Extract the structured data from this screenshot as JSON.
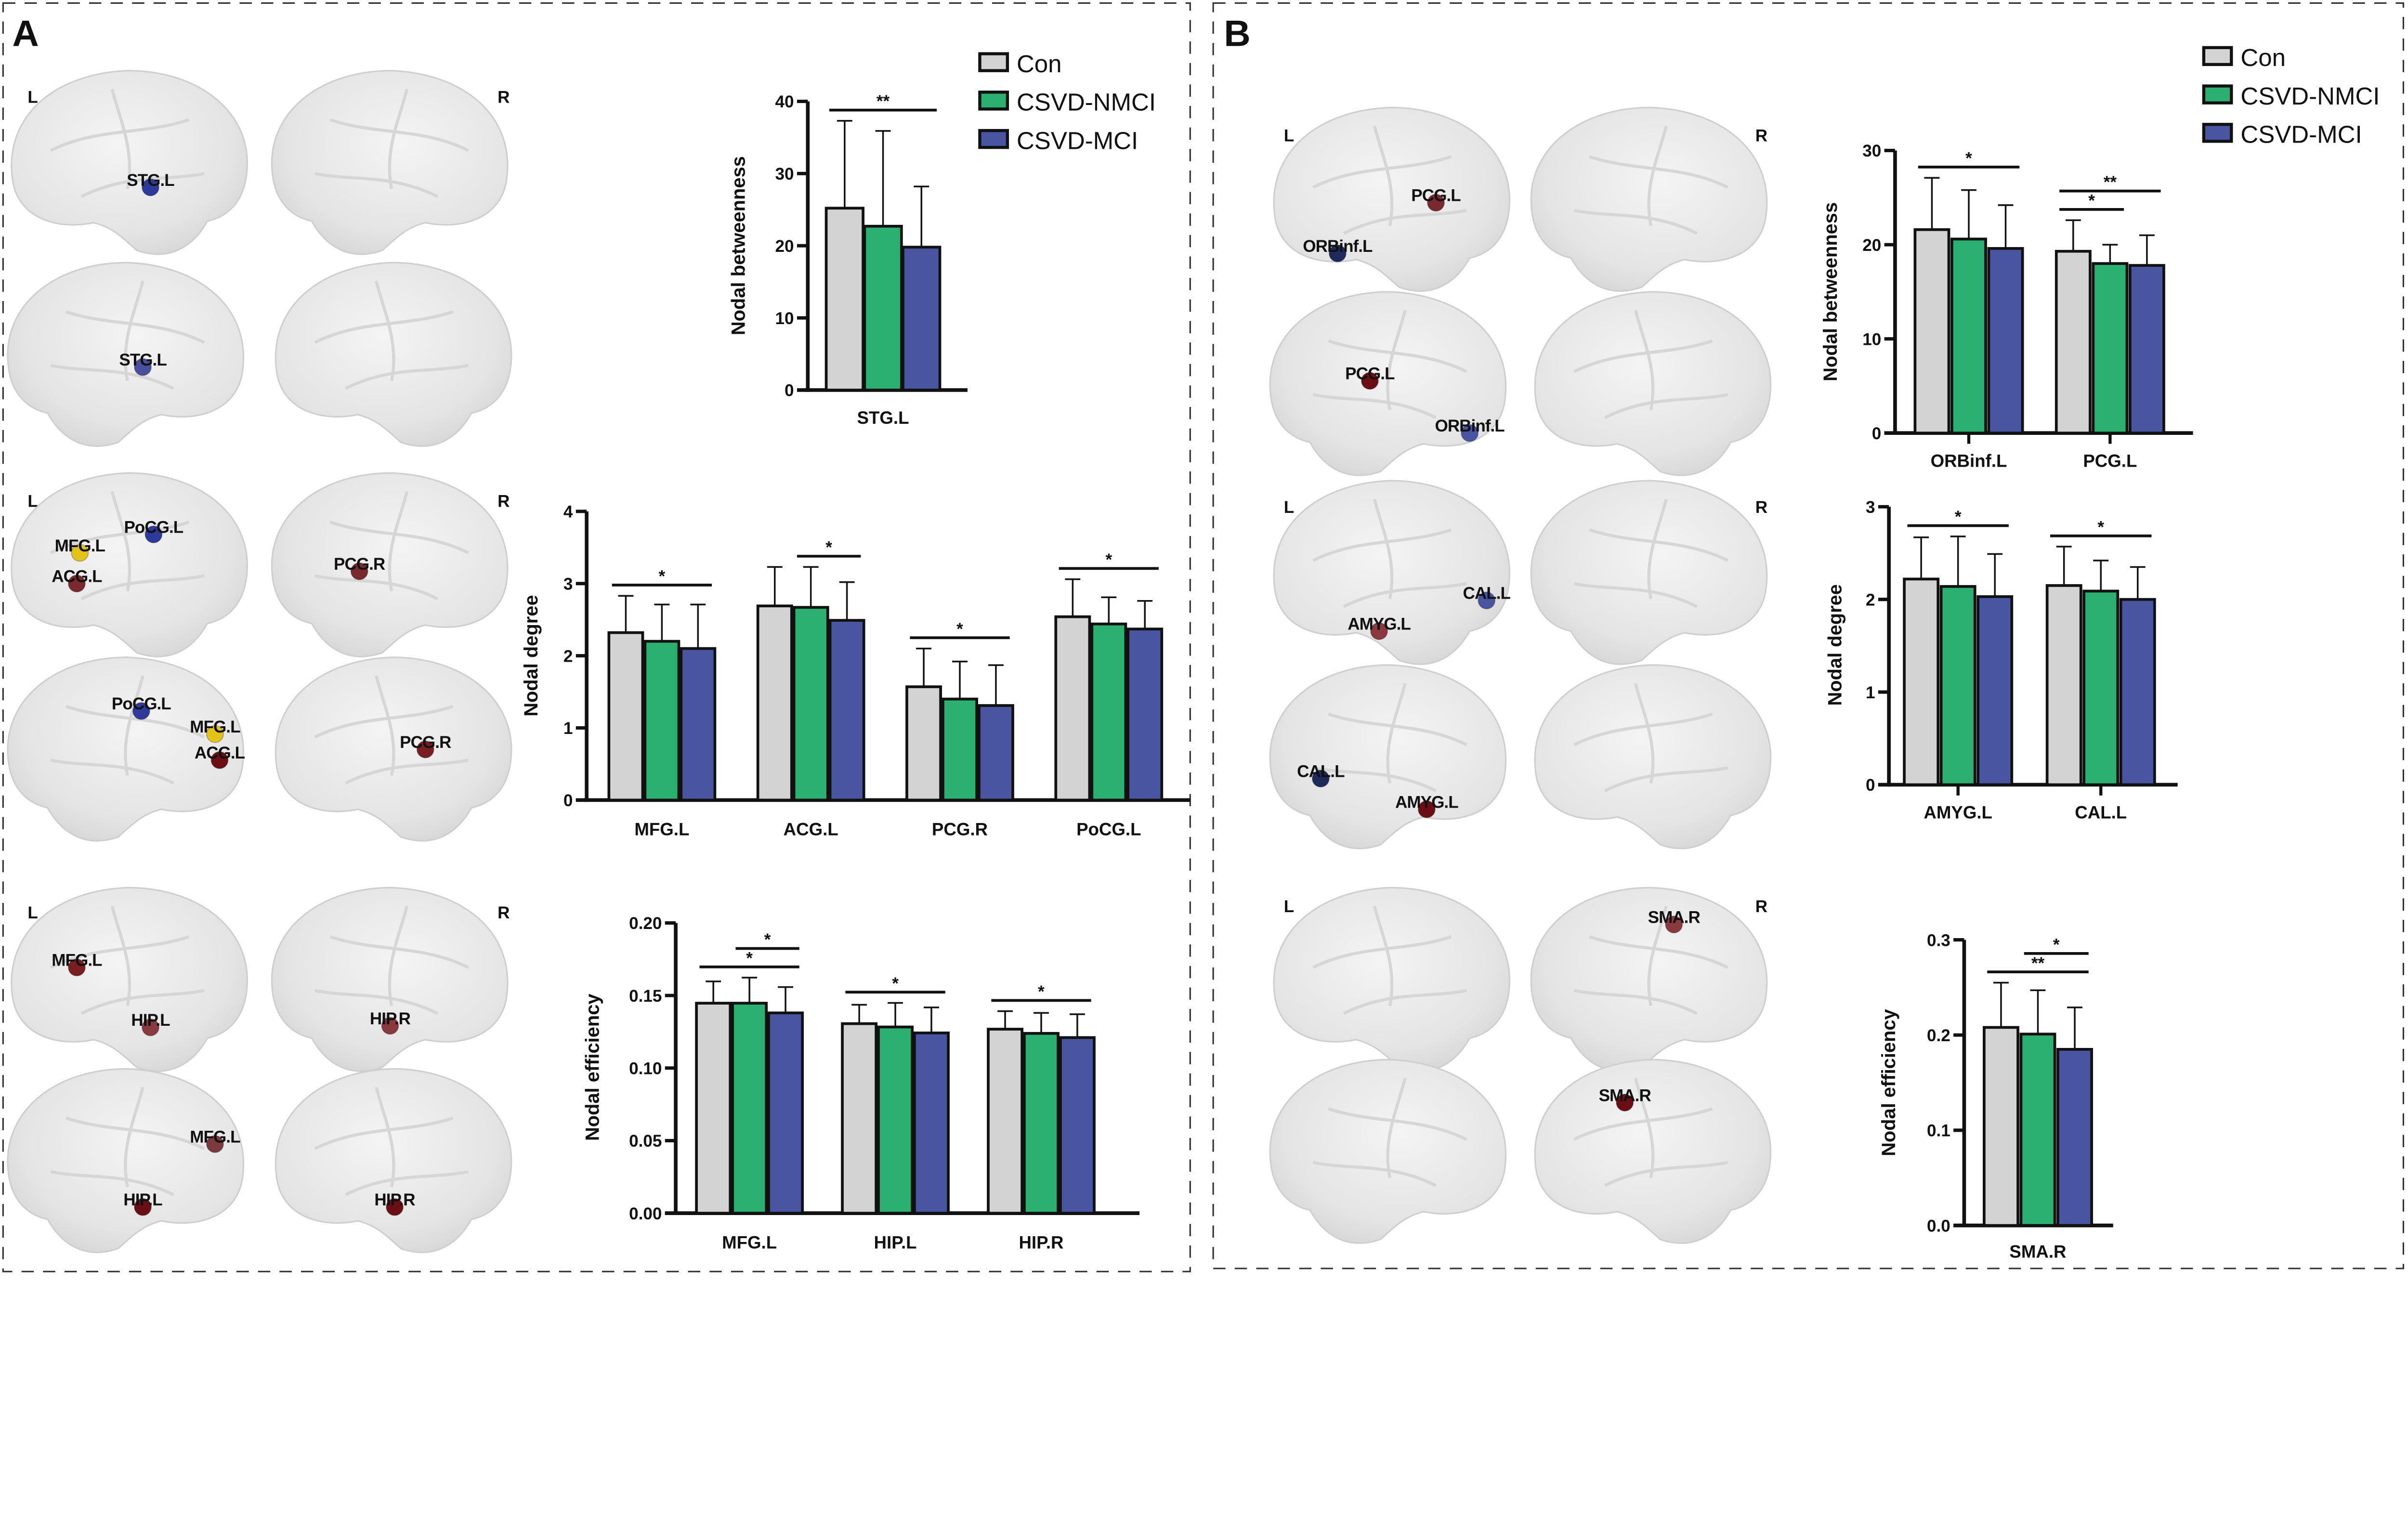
{
  "panels": {
    "a": "A",
    "b": "B"
  },
  "hemisphere_labels": {
    "left": "L",
    "right": "R"
  },
  "legend": [
    {
      "label": "Con",
      "color": "#d3d3d3"
    },
    {
      "label": "CSVD-NMCI",
      "color": "#2bb072"
    },
    {
      "label": "CSVD-MCI",
      "color": "#4a55a2"
    }
  ],
  "brain_blocks": [
    {
      "panel": "A",
      "nodes": [
        {
          "label": "STG.L",
          "color": "#2e3a9a"
        },
        {
          "label": "STG.L",
          "color": "#4a4f9e"
        }
      ]
    },
    {
      "panel": "A",
      "nodes": [
        {
          "label": "PoCG.L",
          "color": "#2e3a9a"
        },
        {
          "label": "MFG.L",
          "color": "#e3c21a"
        },
        {
          "label": "ACG.L",
          "color": "#7a2a2e"
        },
        {
          "label": "PCG.R",
          "color": "#7a2a2e"
        },
        {
          "label": "PoCG.L",
          "color": "#2e3a9a"
        },
        {
          "label": "MFG.L",
          "color": "#e3c21a"
        },
        {
          "label": "ACG.L",
          "color": "#6b0f14"
        },
        {
          "label": "PCG.R",
          "color": "#7a1e22"
        }
      ]
    },
    {
      "panel": "A",
      "nodes": [
        {
          "label": "MFG.L",
          "color": "#7a1e22"
        },
        {
          "label": "HIP.L",
          "color": "#8a3a3e"
        },
        {
          "label": "HIP.R",
          "color": "#8a3a3e"
        },
        {
          "label": "MFG.L",
          "color": "#7a3a3e"
        },
        {
          "label": "HIP.L",
          "color": "#6b0f14"
        },
        {
          "label": "HIP.R",
          "color": "#6b0f14"
        }
      ]
    },
    {
      "panel": "B",
      "nodes": [
        {
          "label": "PCG.L",
          "color": "#7a2a2e"
        },
        {
          "label": "ORBinf.L",
          "color": "#1e2a5a"
        },
        {
          "label": "PCG.L",
          "color": "#6b0f14"
        },
        {
          "label": "ORBinf.L",
          "color": "#4a55a2"
        }
      ]
    },
    {
      "panel": "B",
      "nodes": [
        {
          "label": "CAL.L",
          "color": "#4a55a2"
        },
        {
          "label": "AMYG.L",
          "color": "#8a3a3e"
        },
        {
          "label": "CAL.L",
          "color": "#1e2a5a"
        },
        {
          "label": "AMYG.L",
          "color": "#6b0f14"
        }
      ]
    },
    {
      "panel": "B",
      "nodes": [
        {
          "label": "SMA.R",
          "color": "#8a3a3e"
        },
        {
          "label": "SMA.R",
          "color": "#6b0f14"
        }
      ]
    }
  ],
  "chart_data": [
    {
      "type": "bar",
      "panel": "A",
      "ylabel": "Nodal betweenness",
      "categories": [
        "STG.L"
      ],
      "ylim": [
        0,
        40
      ],
      "yticks": [
        0,
        10,
        20,
        30,
        40
      ],
      "ytick_labels": [
        "0",
        "10",
        "20",
        "30",
        "40"
      ],
      "series": [
        {
          "name": "Con",
          "values": [
            25.2
          ],
          "sd": [
            12.1
          ]
        },
        {
          "name": "CSVD-NMCI",
          "values": [
            22.7
          ],
          "sd": [
            13.2
          ]
        },
        {
          "name": "CSVD-MCI",
          "values": [
            19.8
          ],
          "sd": [
            8.4
          ]
        }
      ],
      "significance": [
        {
          "category": 0,
          "from": 0,
          "to": 2,
          "label": "**",
          "level": 0
        }
      ]
    },
    {
      "type": "bar",
      "panel": "A",
      "ylabel": "Nodal degree",
      "categories": [
        "MFG.L",
        "ACG.L",
        "PCG.R",
        "PoCG.L"
      ],
      "ylim": [
        0,
        4
      ],
      "yticks": [
        0,
        1,
        2,
        3,
        4
      ],
      "ytick_labels": [
        "0",
        "1",
        "2",
        "3",
        "4"
      ],
      "series": [
        {
          "name": "Con",
          "values": [
            2.32,
            2.69,
            1.57,
            2.54
          ],
          "sd": [
            0.51,
            0.54,
            0.53,
            0.52
          ]
        },
        {
          "name": "CSVD-NMCI",
          "values": [
            2.2,
            2.67,
            1.4,
            2.44
          ],
          "sd": [
            0.51,
            0.56,
            0.52,
            0.37
          ]
        },
        {
          "name": "CSVD-MCI",
          "values": [
            2.1,
            2.49,
            1.31,
            2.37
          ],
          "sd": [
            0.61,
            0.53,
            0.56,
            0.39
          ]
        }
      ],
      "significance": [
        {
          "category": 0,
          "from": 0,
          "to": 2,
          "label": "*",
          "level": 0
        },
        {
          "category": 1,
          "from": 1,
          "to": 2,
          "label": "*",
          "level": 0
        },
        {
          "category": 2,
          "from": 0,
          "to": 2,
          "label": "*",
          "level": 0
        },
        {
          "category": 3,
          "from": 0,
          "to": 2,
          "label": "*",
          "level": 0
        }
      ]
    },
    {
      "type": "bar",
      "panel": "A",
      "ylabel": "Nodal efficiency",
      "categories": [
        "MFG.L",
        "HIP.L",
        "HIP.R"
      ],
      "ylim": [
        0,
        0.2
      ],
      "yticks": [
        0,
        0.05,
        0.1,
        0.15,
        0.2
      ],
      "ytick_labels": [
        "0.00",
        "0.05",
        "0.10",
        "0.15",
        "0.20"
      ],
      "series": [
        {
          "name": "Con",
          "values": [
            0.1447,
            0.1306,
            0.1268
          ],
          "sd": [
            0.015,
            0.013,
            0.0124
          ]
        },
        {
          "name": "CSVD-NMCI",
          "values": [
            0.1447,
            0.1283,
            0.1239
          ],
          "sd": [
            0.0176,
            0.0166,
            0.0141
          ]
        },
        {
          "name": "CSVD-MCI",
          "values": [
            0.138,
            0.1242,
            0.121
          ],
          "sd": [
            0.0178,
            0.0176,
            0.0161
          ]
        }
      ],
      "significance": [
        {
          "category": 0,
          "from": 0,
          "to": 2,
          "label": "*",
          "level": 0
        },
        {
          "category": 0,
          "from": 1,
          "to": 2,
          "label": "*",
          "level": 1
        },
        {
          "category": 1,
          "from": 0,
          "to": 2,
          "label": "*",
          "level": 0
        },
        {
          "category": 2,
          "from": 0,
          "to": 2,
          "label": "*",
          "level": 0
        }
      ]
    },
    {
      "type": "bar",
      "panel": "B",
      "ylabel": "Nodal betweenness",
      "categories": [
        "ORBinf.L",
        "PCG.L"
      ],
      "ylim": [
        0,
        30
      ],
      "yticks": [
        0,
        10,
        20,
        30
      ],
      "ytick_labels": [
        "0",
        "10",
        "20",
        "30"
      ],
      "series": [
        {
          "name": "Con",
          "values": [
            21.6,
            19.3
          ],
          "sd": [
            5.5,
            3.3
          ]
        },
        {
          "name": "CSVD-NMCI",
          "values": [
            20.6,
            18.0
          ],
          "sd": [
            5.2,
            2.0
          ]
        },
        {
          "name": "CSVD-MCI",
          "values": [
            19.6,
            17.8
          ],
          "sd": [
            4.6,
            3.2
          ]
        }
      ],
      "significance": [
        {
          "category": 0,
          "from": 0,
          "to": 2,
          "label": "*",
          "level": 0
        },
        {
          "category": 1,
          "from": 0,
          "to": 1,
          "label": "*",
          "level": 0
        },
        {
          "category": 1,
          "from": 0,
          "to": 2,
          "label": "**",
          "level": 1
        }
      ]
    },
    {
      "type": "bar",
      "panel": "B",
      "ylabel": "Nodal degree",
      "categories": [
        "AMYG.L",
        "CAL.L"
      ],
      "ylim": [
        0,
        3
      ],
      "yticks": [
        0,
        1,
        2,
        3
      ],
      "ytick_labels": [
        "0",
        "1",
        "2",
        "3"
      ],
      "series": [
        {
          "name": "Con",
          "values": [
            2.22,
            2.15
          ],
          "sd": [
            0.45,
            0.42
          ]
        },
        {
          "name": "CSVD-NMCI",
          "values": [
            2.14,
            2.09
          ],
          "sd": [
            0.54,
            0.33
          ]
        },
        {
          "name": "CSVD-MCI",
          "values": [
            2.03,
            2.0
          ],
          "sd": [
            0.46,
            0.35
          ]
        }
      ],
      "significance": [
        {
          "category": 0,
          "from": 0,
          "to": 2,
          "label": "*",
          "level": 0
        },
        {
          "category": 1,
          "from": 0,
          "to": 2,
          "label": "*",
          "level": 0
        }
      ]
    },
    {
      "type": "bar",
      "panel": "B",
      "ylabel": "Nodal efficiency",
      "categories": [
        "SMA.R"
      ],
      "ylim": [
        0,
        0.3
      ],
      "yticks": [
        0,
        0.1,
        0.2,
        0.3
      ],
      "ytick_labels": [
        "0.0",
        "0.1",
        "0.2",
        "0.3"
      ],
      "series": [
        {
          "name": "Con",
          "values": [
            0.208
          ],
          "sd": [
            0.047
          ]
        },
        {
          "name": "CSVD-NMCI",
          "values": [
            0.201
          ],
          "sd": [
            0.046
          ]
        },
        {
          "name": "CSVD-MCI",
          "values": [
            0.185
          ],
          "sd": [
            0.044
          ]
        }
      ],
      "significance": [
        {
          "category": 0,
          "from": 0,
          "to": 2,
          "label": "**",
          "level": 0
        },
        {
          "category": 0,
          "from": 1,
          "to": 2,
          "label": "*",
          "level": 1
        }
      ]
    }
  ]
}
